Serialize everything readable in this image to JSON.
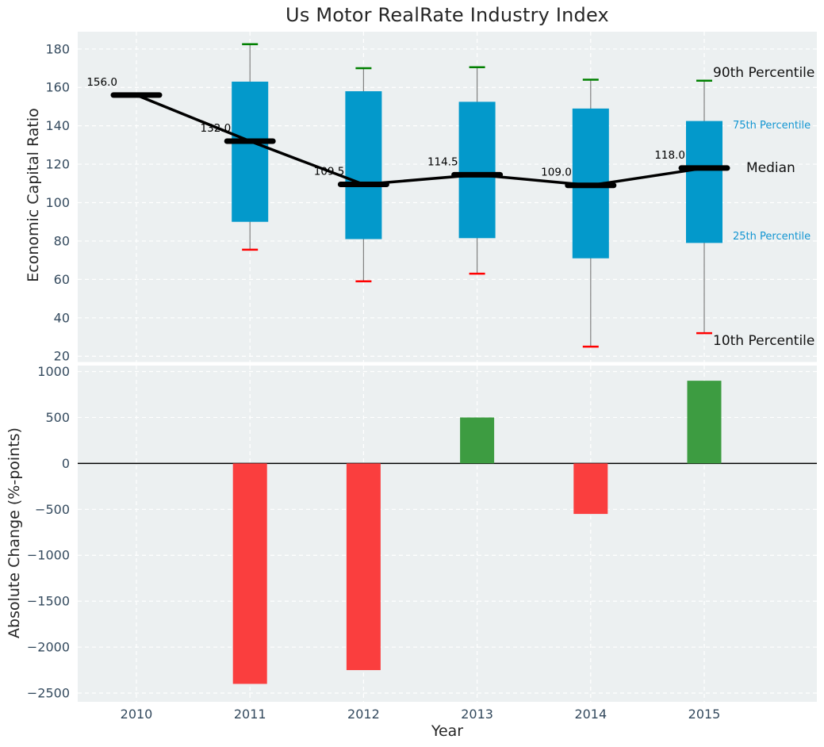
{
  "title": "Us Motor RealRate Industry Index",
  "axes": {
    "top_ylabel": "Economic Capital Ratio",
    "bottom_ylabel": "Absolute Change (%-points)",
    "xlabel": "Year"
  },
  "legend": {
    "p90_label": "90th Percentile",
    "p75_label": "75th Percentile",
    "median_label": "Median",
    "p25_label": "25th Percentile",
    "p10_label": "10th Percentile",
    "position": "right-inside"
  },
  "colors": {
    "box": "#0399cb",
    "p90_cap": "#008000",
    "p10_cap": "#ff0000",
    "whisker": "#808080",
    "median_line": "#000000",
    "bar_positive": "#3d9c41",
    "bar_negative": "#fa3e3e",
    "axes_background": "#ecf0f1",
    "grid": "#ffffff",
    "tick_label": "#344a5e",
    "blue_label": "#1496d2",
    "zero_line": "#000000"
  },
  "chart_data": [
    {
      "type": "boxplot-timeseries",
      "panel": "top",
      "title": "",
      "ylabel": "Economic Capital Ratio",
      "x": [
        2010,
        2011,
        2012,
        2013,
        2014,
        2015
      ],
      "series": [
        {
          "name": "median",
          "values": [
            156.0,
            132.0,
            109.5,
            114.5,
            109.0,
            118.0
          ]
        },
        {
          "name": "p90",
          "values": [
            null,
            182.5,
            170.0,
            170.5,
            164.0,
            163.5
          ]
        },
        {
          "name": "p75",
          "values": [
            null,
            163.0,
            158.0,
            152.5,
            149.0,
            142.5
          ]
        },
        {
          "name": "p25",
          "values": [
            null,
            90.0,
            81.0,
            81.5,
            71.0,
            79.0
          ]
        },
        {
          "name": "p10",
          "values": [
            null,
            75.5,
            59.0,
            63.0,
            25.0,
            32.0
          ]
        }
      ],
      "median_labels": [
        "156.0",
        "132.0",
        "109.5",
        "114.5",
        "109.0",
        "118.0"
      ],
      "yticks": [
        180,
        160,
        140,
        120,
        100,
        80,
        60,
        40,
        20
      ],
      "ylim": [
        17,
        189
      ],
      "grid": true
    },
    {
      "type": "bar",
      "panel": "bottom",
      "ylabel": "Absolute Change (%-points)",
      "xlabel": "Year",
      "categories": [
        "2010",
        "2011",
        "2012",
        "2013",
        "2014",
        "2015"
      ],
      "values": [
        null,
        -2400,
        -2250,
        500,
        -550,
        900
      ],
      "yticks": [
        1000,
        500,
        0,
        -500,
        -1000,
        -1500,
        -2000,
        -2500
      ],
      "ylim": [
        -2595,
        1065
      ],
      "grid": true
    }
  ]
}
